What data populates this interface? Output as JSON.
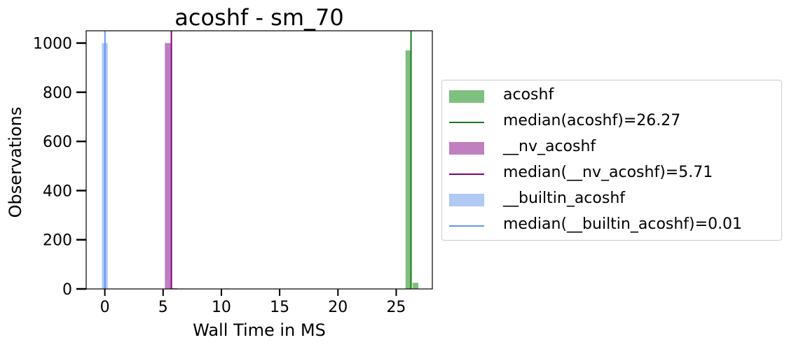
{
  "chart_data": {
    "type": "bar",
    "title": "acoshf - sm_70",
    "xlabel": "Wall Time in MS",
    "ylabel": "Observations",
    "xlim": [
      -1.6,
      28.1
    ],
    "ylim": [
      0,
      1050
    ],
    "xticks": [
      0,
      5,
      10,
      15,
      20,
      25
    ],
    "yticks": [
      0,
      200,
      400,
      600,
      800,
      1000
    ],
    "legend_position": "right outside",
    "series": [
      {
        "name": "acoshf",
        "color": "#4ca64c",
        "bars": [
          {
            "x0": 25.8,
            "x1": 26.3,
            "count": 970
          },
          {
            "x0": 26.4,
            "x1": 26.9,
            "count": 25
          }
        ]
      },
      {
        "name": "__nv_acoshf",
        "color": "#a64ca6",
        "bars": [
          {
            "x0": 5.15,
            "x1": 5.65,
            "count": 1000
          },
          {
            "x0": 5.7,
            "x1": 6.2,
            "count": 3
          },
          {
            "x0": 10.2,
            "x1": 10.7,
            "count": 2
          }
        ]
      },
      {
        "name": "__builtin_acoshf",
        "color": "#8fb3f0",
        "bars": [
          {
            "x0": -0.25,
            "x1": 0.25,
            "count": 1000
          }
        ]
      }
    ],
    "medians": [
      {
        "name": "median(acoshf)=26.27",
        "value": 26.27,
        "color": "#1a7a1a"
      },
      {
        "name": "median(__nv_acoshf)=5.71",
        "value": 5.71,
        "color": "#800080"
      },
      {
        "name": "median(__builtin_acoshf)=0.01",
        "value": 0.01,
        "color": "#6495ed"
      }
    ]
  },
  "legend": [
    {
      "kind": "patch",
      "label": "acoshf",
      "color": "#7fc07f"
    },
    {
      "kind": "line",
      "label": "median(acoshf)=26.27",
      "color": "#1a7a1a"
    },
    {
      "kind": "patch",
      "label": "__nv_acoshf",
      "color": "#c080c0"
    },
    {
      "kind": "line",
      "label": "median(__nv_acoshf)=5.71",
      "color": "#800080"
    },
    {
      "kind": "patch",
      "label": "__builtin_acoshf",
      "color": "#b0c9f5"
    },
    {
      "kind": "line",
      "label": "median(__builtin_acoshf)=0.01",
      "color": "#6495ed"
    }
  ]
}
